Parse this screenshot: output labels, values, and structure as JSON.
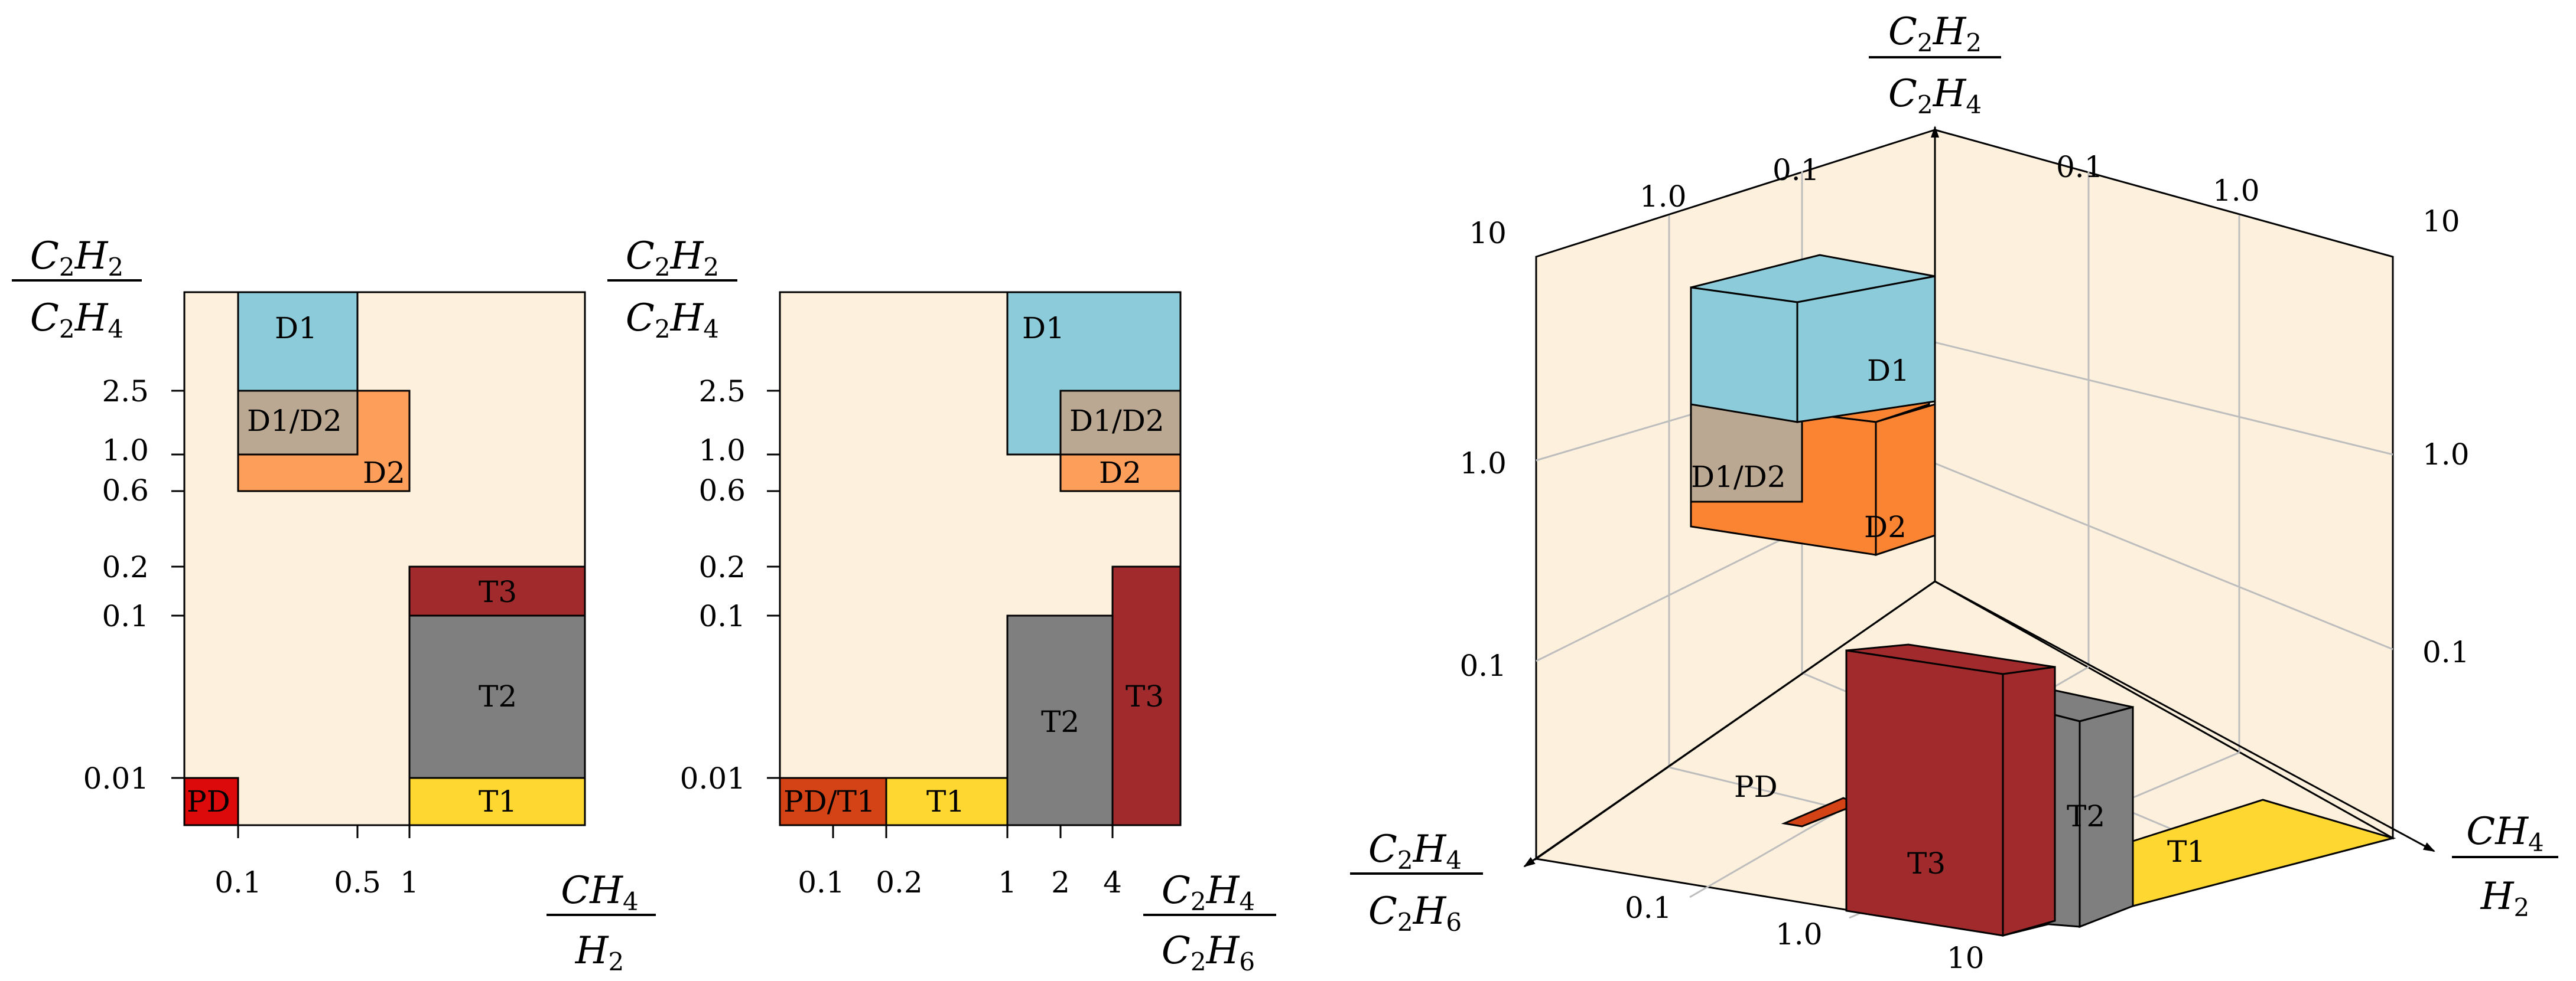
{
  "colors": {
    "background": "#fdf1de",
    "D1": "#8ccbd9",
    "D1_D2": "#bba892",
    "D2": "#fd9e5a",
    "D2_3d": "#fb8433",
    "T1": "#fed731",
    "T2": "#7f7f7f",
    "T3": "#a12a2d",
    "PD": "#dc0a0a",
    "PD_T1": "#d44316"
  },
  "axis_labels": {
    "c2h2_c2h4": {
      "num_base": "C",
      "num_sub": "2",
      "num_base2": "H",
      "num_sub2": "2",
      "den_base": "C",
      "den_sub": "2",
      "den_base2": "H",
      "den_sub2": "4"
    },
    "ch4_h2": {
      "num_base": "CH",
      "num_sub": "4",
      "den_base": "H",
      "den_sub": "2"
    },
    "c2h4_c2h6": {
      "num_base": "C",
      "num_sub": "2",
      "num_base2": "H",
      "num_sub2": "4",
      "den_base": "C",
      "den_sub": "2",
      "den_base2": "H",
      "den_sub2": "6"
    }
  },
  "panel1": {
    "y_ticks": [
      "2.5",
      "1.0",
      "0.6",
      "0.2",
      "0.1",
      "0.01"
    ],
    "x_ticks": [
      "0.1",
      "0.5",
      "1"
    ],
    "regions": {
      "D1": "D1",
      "D1_D2": "D1/D2",
      "D2": "D2",
      "T3": "T3",
      "T2": "T2",
      "T1": "T1",
      "PD": "PD"
    }
  },
  "panel2": {
    "y_ticks": [
      "2.5",
      "1.0",
      "0.6",
      "0.2",
      "0.1",
      "0.01"
    ],
    "x_ticks": [
      "0.1",
      "0.2",
      "1",
      "2",
      "4"
    ],
    "regions": {
      "D1": "D1",
      "D1_D2": "D1/D2",
      "D2": "D2",
      "T3": "T3",
      "T2": "T2",
      "T1": "T1",
      "PD_T1": "PD/T1"
    }
  },
  "panel3": {
    "left_ticks": [
      "10",
      "1.0",
      "0.1"
    ],
    "right_ticks": [
      "10",
      "1.0",
      "0.1"
    ],
    "back_left_ticks": [
      "1.0",
      "0.1"
    ],
    "back_right_ticks": [
      "0.1",
      "1.0"
    ],
    "bottom_ticks": [
      "0.1",
      "1.0",
      "10"
    ],
    "regions": {
      "D1": "D1",
      "D1_D2": "D1/D2",
      "D2": "D2",
      "T3": "T3",
      "T2": "T2",
      "T1": "T1",
      "PD": "PD"
    }
  }
}
